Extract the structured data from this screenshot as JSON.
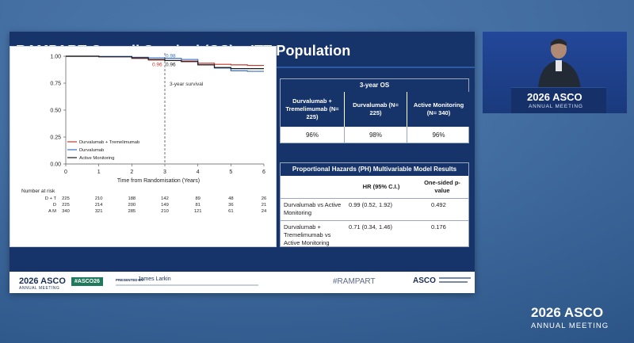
{
  "slide": {
    "title": "RAMPART Overall Survival (OS) – ITT Population"
  },
  "chart_data": {
    "type": "line",
    "xlabel": "Time from Randomisation (Years)",
    "ylabel": "",
    "xlim": [
      0,
      6
    ],
    "ylim": [
      0,
      1
    ],
    "x_ticks": [
      "0",
      "1",
      "2",
      "3",
      "4",
      "5",
      "6"
    ],
    "y_ticks": [
      "0.00",
      "0.25",
      "0.50",
      "0.75",
      "1.00"
    ],
    "series": [
      {
        "name": "Durvalumab + Tremelimumab",
        "color": "#c0392b",
        "x": [
          0,
          1,
          2,
          2.5,
          3,
          3.5,
          4,
          4.5,
          5,
          5.5,
          6
        ],
        "y": [
          1.0,
          0.995,
          0.98,
          0.965,
          0.96,
          0.955,
          0.935,
          0.925,
          0.92,
          0.915,
          0.915
        ]
      },
      {
        "name": "Durvalumab",
        "color": "#3a6fc4",
        "x": [
          0,
          1,
          2,
          2.5,
          3,
          3.5,
          4,
          4.5,
          5,
          5.5,
          6
        ],
        "y": [
          1.0,
          0.998,
          0.99,
          0.985,
          0.98,
          0.97,
          0.92,
          0.89,
          0.865,
          0.86,
          0.86
        ]
      },
      {
        "name": "Active Monitoring",
        "color": "#1a1a1a",
        "x": [
          0,
          1,
          2,
          2.5,
          3,
          3.5,
          4,
          4.5,
          5,
          5.5,
          6
        ],
        "y": [
          1.0,
          0.995,
          0.985,
          0.97,
          0.96,
          0.95,
          0.92,
          0.895,
          0.885,
          0.885,
          0.885
        ]
      }
    ],
    "annotations": {
      "value_labels": [
        "0.98",
        "0.96",
        "0.96"
      ],
      "vline_label": "3-year survival",
      "vline_x": 3
    },
    "risk_table": {
      "title": "Number at risk",
      "rows": [
        {
          "label": "D + T",
          "values": [
            "225",
            "210",
            "188",
            "142",
            "89",
            "48",
            "26"
          ]
        },
        {
          "label": "D",
          "values": [
            "225",
            "214",
            "200",
            "149",
            "81",
            "36",
            "21"
          ]
        },
        {
          "label": "A M",
          "values": [
            "340",
            "321",
            "285",
            "210",
            "121",
            "61",
            "24"
          ]
        }
      ]
    }
  },
  "os_table": {
    "title": "3-year OS",
    "headers": [
      "Durvalumab + Tremelimumab (N= 225)",
      "Durvalumab (N= 225)",
      "Active Monitoring (N= 340)"
    ],
    "values": [
      "96%",
      "98%",
      "96%"
    ]
  },
  "ph_table": {
    "title": "Proportional Hazards (PH) Multivariable Model Results",
    "col_hr": "HR (95% C.I.)",
    "col_p": "One-sided p-value",
    "rows": [
      {
        "label": "Durvalumab vs Active Monitoring",
        "hr": "0.99 (0.52, 1.92)",
        "p": "0.492"
      },
      {
        "label": "Durvalumab + Tremelimumab vs Active Monitoring",
        "hr": "0.71 (0.34, 1.46)",
        "p": "0.176"
      }
    ]
  },
  "footer": {
    "meeting_year": "2026",
    "meeting_name": "ASCO",
    "meeting_sub": "ANNUAL MEETING",
    "hashtag_badge": "#ASCO26",
    "presented_by_label": "PRESENTED BY:",
    "presenter": "James Larkin",
    "hashtag": "#RAMPART",
    "org": "ASCO"
  },
  "podium": {
    "year": "2026",
    "name": "ASCO",
    "sub": "ANNUAL MEETING"
  },
  "brand": {
    "year": "2026",
    "name": "ASCO",
    "sub": "ANNUAL MEETING"
  },
  "colors": {
    "slide_bg": "#17346a",
    "header_blue": "#17346a",
    "accent_red": "#c0392b",
    "accent_blue": "#3a6fc4"
  }
}
